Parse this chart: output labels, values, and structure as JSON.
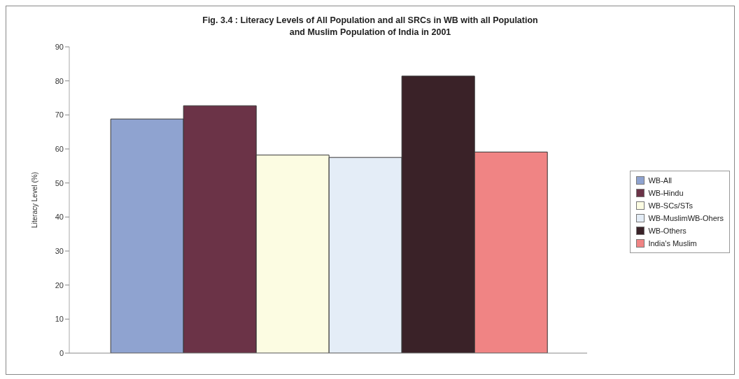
{
  "chart_data": {
    "type": "bar",
    "title": "Fig. 3.4 : Literacy Levels of All Population and all SRCs in WB with all Population\nand Muslim Population of India in 2001",
    "ylabel": "Literacy Level (%)",
    "categories": [
      null
    ],
    "series": [
      {
        "name": "WB-All",
        "color": "#8fa3d0",
        "values": [
          68.8
        ]
      },
      {
        "name": "WB-Hindu",
        "color": "#6b3347",
        "values": [
          72.7
        ]
      },
      {
        "name": "WB-SCs/STs",
        "color": "#fcfce2",
        "values": [
          58.2
        ]
      },
      {
        "name": "WB-MuslimWB-Ohers",
        "color": "#e4edf7",
        "values": [
          57.5
        ]
      },
      {
        "name": "WB-Others",
        "color": "#3a2228",
        "values": [
          81.4
        ]
      },
      {
        "name": "India's Muslim",
        "color": "#f08484",
        "values": [
          59.1
        ]
      }
    ],
    "ylim": [
      0,
      90
    ],
    "yticks": [
      0,
      10,
      20,
      30,
      40,
      50,
      60,
      70,
      80,
      90
    ],
    "grid": false,
    "legend": "right"
  }
}
